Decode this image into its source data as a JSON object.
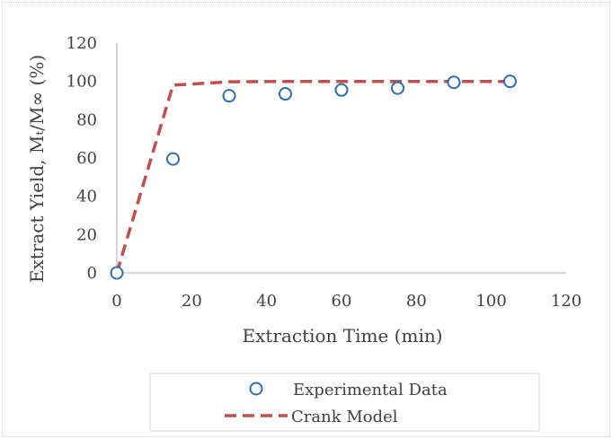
{
  "chart_data": {
    "type": "scatter",
    "xlabel": "Extraction Time (min)",
    "ylabel": "Extract Yield, Mₜ/M∞ (%)",
    "xlim": [
      0,
      120
    ],
    "ylim": [
      0,
      120
    ],
    "x_ticks": [
      0,
      20,
      40,
      60,
      80,
      100,
      120
    ],
    "y_ticks": [
      0,
      20,
      40,
      60,
      80,
      100,
      120
    ],
    "grid": false,
    "legend_position": "bottom",
    "series": [
      {
        "name": "Experimental Data",
        "style": "markers",
        "marker": "open-circle",
        "color": "#2E6DB4",
        "x": [
          0,
          15,
          30,
          45,
          60,
          75,
          90,
          105
        ],
        "y": [
          0,
          59.5,
          92.5,
          93.5,
          95.5,
          96.5,
          99.5,
          100
        ]
      },
      {
        "name": "Crank Model",
        "style": "dashed-line",
        "color": "#C0504D",
        "x": [
          0,
          15,
          30,
          45,
          60,
          75,
          90,
          105
        ],
        "y": [
          0,
          98,
          99.8,
          100,
          100,
          100,
          100,
          100
        ]
      }
    ]
  },
  "colors": {
    "axis": "#BFBFBF",
    "text": "#404040",
    "frame": "#D9D9D9"
  }
}
